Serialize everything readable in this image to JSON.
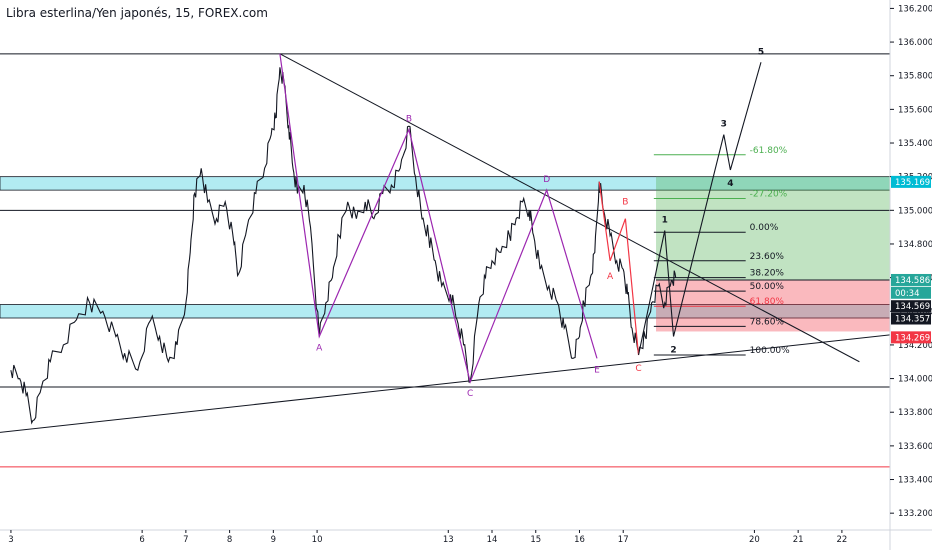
{
  "chart_data": {
    "type": "line",
    "title": "Libra esterlina/Yen japonés, 15, FOREX.com",
    "ylim": [
      133.1,
      136.25
    ],
    "y_ticks": [
      "133.200",
      "133.400",
      "133.600",
      "133.800",
      "134.000",
      "134.200",
      "134.400",
      "134.600",
      "134.800",
      "135.000",
      "135.200",
      "135.400",
      "135.600",
      "135.800",
      "136.000",
      "136.200"
    ],
    "x_ticks": [
      {
        "label": "3",
        "x": 3
      },
      {
        "label": "6",
        "x": 6
      },
      {
        "label": "7",
        "x": 7
      },
      {
        "label": "8",
        "x": 8
      },
      {
        "label": "9",
        "x": 9
      },
      {
        "label": "10",
        "x": 10
      },
      {
        "label": "13",
        "x": 13
      },
      {
        "label": "14",
        "x": 14
      },
      {
        "label": "15",
        "x": 15
      },
      {
        "label": "16",
        "x": 16
      },
      {
        "label": "17",
        "x": 17
      },
      {
        "label": "20",
        "x": 20
      },
      {
        "label": "21",
        "x": 21
      },
      {
        "label": "22",
        "x": 22
      }
    ],
    "xlim": [
      2.75,
      23.1
    ],
    "price_series": [
      [
        3.0,
        134.05
      ],
      [
        3.2,
        134.0
      ],
      [
        3.35,
        133.9
      ],
      [
        3.5,
        133.75
      ],
      [
        3.7,
        133.95
      ],
      [
        3.9,
        134.1
      ],
      [
        4.2,
        134.2
      ],
      [
        4.5,
        134.35
      ],
      [
        4.8,
        134.45
      ],
      [
        5.1,
        134.4
      ],
      [
        5.4,
        134.25
      ],
      [
        5.6,
        134.15
      ],
      [
        5.9,
        134.05
      ],
      [
        6.2,
        134.35
      ],
      [
        6.4,
        134.25
      ],
      [
        6.6,
        134.1
      ],
      [
        6.8,
        134.2
      ],
      [
        7.0,
        134.45
      ],
      [
        7.1,
        134.75
      ],
      [
        7.2,
        135.1
      ],
      [
        7.35,
        135.25
      ],
      [
        7.5,
        135.05
      ],
      [
        7.7,
        134.95
      ],
      [
        7.9,
        135.05
      ],
      [
        8.1,
        134.8
      ],
      [
        8.2,
        134.62
      ],
      [
        8.4,
        134.9
      ],
      [
        8.6,
        135.1
      ],
      [
        8.8,
        135.25
      ],
      [
        8.95,
        135.45
      ],
      [
        9.05,
        135.55
      ],
      [
        9.15,
        135.85
      ],
      [
        9.25,
        135.75
      ],
      [
        9.35,
        135.5
      ],
      [
        9.45,
        135.25
      ],
      [
        9.55,
        135.1
      ],
      [
        9.7,
        135.15
      ],
      [
        9.85,
        134.9
      ],
      [
        10.05,
        134.25
      ],
      [
        10.2,
        134.45
      ],
      [
        10.35,
        134.6
      ],
      [
        10.5,
        134.85
      ],
      [
        10.7,
        135.05
      ],
      [
        10.9,
        134.95
      ],
      [
        11.1,
        135.05
      ],
      [
        11.3,
        134.95
      ],
      [
        11.5,
        135.1
      ],
      [
        11.7,
        135.15
      ],
      [
        11.9,
        135.25
      ],
      [
        12.1,
        135.5
      ],
      [
        12.25,
        135.2
      ],
      [
        12.4,
        134.95
      ],
      [
        12.55,
        134.85
      ],
      [
        12.7,
        134.7
      ],
      [
        12.85,
        134.55
      ],
      [
        13.05,
        134.5
      ],
      [
        13.2,
        134.35
      ],
      [
        13.35,
        134.2
      ],
      [
        13.5,
        133.98
      ],
      [
        13.7,
        134.45
      ],
      [
        13.85,
        134.6
      ],
      [
        14.0,
        134.7
      ],
      [
        14.2,
        134.75
      ],
      [
        14.4,
        134.85
      ],
      [
        14.55,
        134.95
      ],
      [
        14.7,
        135.05
      ],
      [
        14.85,
        135.0
      ],
      [
        14.95,
        134.85
      ],
      [
        15.1,
        134.65
      ],
      [
        15.3,
        134.55
      ],
      [
        15.5,
        134.45
      ],
      [
        15.65,
        134.3
      ],
      [
        15.85,
        134.12
      ],
      [
        16.0,
        134.25
      ],
      [
        16.1,
        134.45
      ],
      [
        16.25,
        134.6
      ],
      [
        16.35,
        134.75
      ],
      [
        16.45,
        135.17
      ],
      [
        16.55,
        135.0
      ],
      [
        16.7,
        134.85
      ],
      [
        16.85,
        134.7
      ],
      [
        17.0,
        134.65
      ],
      [
        17.1,
        134.5
      ],
      [
        17.2,
        134.3
      ],
      [
        17.35,
        134.15
      ],
      [
        17.5,
        134.25
      ],
      [
        17.65,
        134.45
      ],
      [
        17.8,
        134.55
      ],
      [
        17.95,
        134.45
      ],
      [
        18.1,
        134.58
      ],
      [
        18.2,
        134.6
      ]
    ],
    "horizontal_lines": [
      {
        "y": 135.93,
        "color": "#131722"
      },
      {
        "y": 135.0,
        "color": "#131722"
      },
      {
        "y": 133.95,
        "color": "#131722"
      },
      {
        "y": 133.475,
        "color": "#f23645"
      }
    ],
    "zones": [
      {
        "y1": 135.12,
        "y2": 135.2,
        "color": "#b2ebf2"
      },
      {
        "y1": 134.36,
        "y2": 134.44,
        "color": "#b2ebf2"
      }
    ],
    "trendlines": [
      {
        "x1": 9.15,
        "y1": 135.93,
        "x2": 22.4,
        "y2": 134.1
      },
      {
        "x1": 2.75,
        "y1": 133.68,
        "x2": 23.1,
        "y2": 134.26
      }
    ],
    "abcde_pattern": [
      {
        "x": 9.15,
        "y": 135.93,
        "label": ""
      },
      {
        "x": 10.05,
        "y": 134.25,
        "label": "A"
      },
      {
        "x": 12.1,
        "y": 135.48,
        "label": "B"
      },
      {
        "x": 13.5,
        "y": 133.98,
        "label": "C"
      },
      {
        "x": 15.25,
        "y": 135.12,
        "label": "D"
      },
      {
        "x": 16.4,
        "y": 134.12,
        "label": "E"
      }
    ],
    "abc_pattern": [
      {
        "x": 16.45,
        "y": 135.17,
        "label": ""
      },
      {
        "x": 16.7,
        "y": 134.7,
        "label": "A"
      },
      {
        "x": 17.05,
        "y": 134.95,
        "label": "B"
      },
      {
        "x": 17.35,
        "y": 134.14,
        "label": "C"
      }
    ],
    "elliott_projection": [
      {
        "x": 17.35,
        "y": 134.14,
        "label": ""
      },
      {
        "x": 17.95,
        "y": 134.88,
        "label": "1"
      },
      {
        "x": 18.15,
        "y": 134.25,
        "label": "2"
      },
      {
        "x": 19.3,
        "y": 135.45,
        "label": "3"
      },
      {
        "x": 19.45,
        "y": 135.24,
        "label": "4"
      },
      {
        "x": 20.15,
        "y": 135.88,
        "label": "5"
      }
    ],
    "fibonacci": [
      {
        "label": "-61.80%",
        "y": 135.33,
        "color": "#4caf50"
      },
      {
        "label": "-27.20%",
        "y": 135.07,
        "color": "#4caf50"
      },
      {
        "label": "0.00%",
        "y": 134.87,
        "color": "#131722"
      },
      {
        "label": "23.60%",
        "y": 134.7,
        "color": "#131722"
      },
      {
        "label": "38.20%",
        "y": 134.6,
        "color": "#131722"
      },
      {
        "label": "50.00%",
        "y": 134.52,
        "color": "#131722"
      },
      {
        "label": "61.80%",
        "y": 134.43,
        "color": "#f23645"
      },
      {
        "label": "78.60%",
        "y": 134.31,
        "color": "#131722"
      },
      {
        "label": "100.00%",
        "y": 134.14,
        "color": "#131722"
      }
    ],
    "position": {
      "x1": 17.75,
      "x2": 23.1,
      "entry": 134.586,
      "target": 135.2,
      "stop": 134.28
    },
    "price_labels": [
      {
        "text": "135.169",
        "y": 135.169,
        "bg": "#00bcd4"
      },
      {
        "text": "134.586",
        "y": 134.586,
        "bg": "#26a69a"
      },
      {
        "text": "00:34",
        "y": 134.51,
        "bg": "#26a69a"
      },
      {
        "text": "134.569",
        "y": 134.43,
        "bg": "#131722"
      },
      {
        "text": "134.357",
        "y": 134.357,
        "bg": "#131722"
      },
      {
        "text": "134.269",
        "y": 134.245,
        "bg": "#f23645"
      }
    ]
  }
}
